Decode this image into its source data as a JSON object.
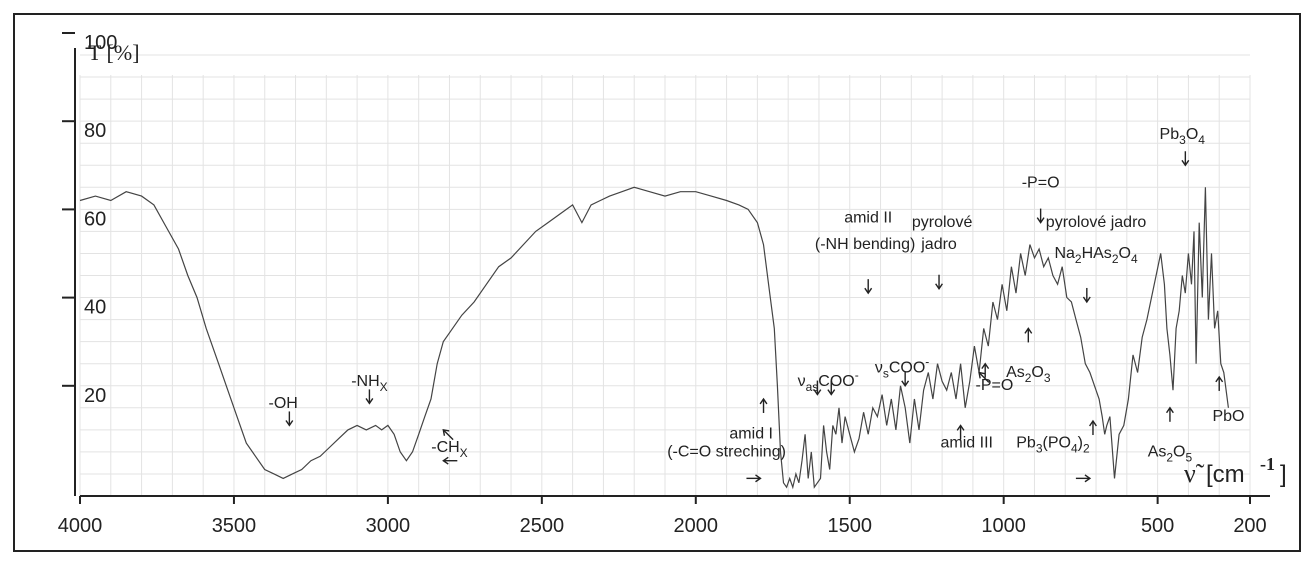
{
  "chart_data": {
    "type": "line",
    "title": "",
    "ylabel": "T [%]",
    "xlabel_symbol": "ν̃",
    "xlabel_unit": "[cm",
    "xlabel_exp": "-1",
    "xlabel_close": "]",
    "xlim": [
      4000,
      200
    ],
    "ylim": [
      0,
      100
    ],
    "grid": true,
    "x_ticks": [
      4000,
      3500,
      3000,
      2500,
      2000,
      1500,
      1000,
      500,
      200
    ],
    "y_ticks": [
      100,
      80,
      60,
      40,
      20
    ],
    "series": [
      {
        "x": [
          4000,
          3950,
          3900,
          3850,
          3800,
          3760,
          3720,
          3680,
          3650,
          3620,
          3590,
          3550,
          3520,
          3490,
          3460,
          3430,
          3400,
          3370,
          3340,
          3310,
          3280,
          3250,
          3220,
          3190,
          3160,
          3130,
          3100,
          3070,
          3040,
          3020,
          3000,
          2980,
          2960,
          2940,
          2920,
          2900,
          2880,
          2860,
          2840,
          2820,
          2800,
          2760,
          2720,
          2680,
          2640,
          2600,
          2560,
          2520,
          2480,
          2440,
          2400,
          2370,
          2340,
          2310,
          2280,
          2240,
          2200,
          2150,
          2100,
          2050,
          2000,
          1950,
          1900,
          1860,
          1830,
          1800,
          1780,
          1760,
          1745,
          1735,
          1725,
          1715,
          1705,
          1695,
          1685,
          1675,
          1665,
          1655,
          1645,
          1635,
          1625,
          1615,
          1605,
          1595,
          1585,
          1575,
          1565,
          1555,
          1545,
          1535,
          1525,
          1515,
          1500,
          1485,
          1470,
          1455,
          1440,
          1425,
          1410,
          1395,
          1380,
          1365,
          1350,
          1335,
          1320,
          1305,
          1290,
          1275,
          1260,
          1245,
          1230,
          1215,
          1200,
          1185,
          1170,
          1155,
          1140,
          1125,
          1110,
          1095,
          1080,
          1065,
          1050,
          1035,
          1020,
          1005,
          990,
          975,
          960,
          945,
          930,
          915,
          900,
          885,
          870,
          855,
          840,
          825,
          810,
          795,
          780,
          765,
          750,
          735,
          720,
          705,
          690,
          680,
          672,
          665,
          655,
          640,
          625,
          610,
          595,
          580,
          565,
          550,
          535,
          520,
          505,
          490,
          478,
          470,
          460,
          450,
          440,
          430,
          420,
          410,
          400,
          390,
          382,
          375,
          365,
          355,
          345,
          335,
          325,
          315,
          305,
          295,
          285,
          270
        ],
        "values": [
          67,
          68,
          67,
          69,
          68,
          66,
          61,
          56,
          50,
          45,
          38,
          30,
          24,
          18,
          12,
          9,
          6,
          5,
          4,
          5,
          6,
          8,
          9,
          11,
          13,
          15,
          16,
          15,
          16,
          15,
          16,
          14,
          10,
          8,
          10,
          14,
          18,
          22,
          30,
          35,
          37,
          41,
          44,
          48,
          52,
          54,
          57,
          60,
          62,
          64,
          66,
          62,
          66,
          67,
          68,
          69,
          70,
          69,
          68,
          69,
          69,
          68,
          67,
          66,
          65,
          62,
          57,
          46,
          38,
          25,
          10,
          3,
          2,
          4,
          2,
          5,
          3,
          8,
          14,
          4,
          10,
          2,
          3,
          4,
          16,
          10,
          6,
          16,
          14,
          20,
          12,
          18,
          14,
          10,
          13,
          19,
          14,
          20,
          18,
          23,
          16,
          22,
          15,
          25,
          20,
          12,
          22,
          15,
          24,
          28,
          22,
          30,
          26,
          24,
          28,
          22,
          30,
          20,
          26,
          34,
          28,
          38,
          34,
          44,
          40,
          48,
          42,
          52,
          46,
          55,
          50,
          57,
          54,
          56,
          52,
          54,
          50,
          48,
          52,
          45,
          44,
          40,
          36,
          30,
          28,
          25,
          22,
          18,
          14,
          16,
          18,
          4,
          14,
          16,
          22,
          32,
          28,
          36,
          40,
          45,
          50,
          55,
          48,
          38,
          32,
          24,
          38,
          42,
          50,
          46,
          55,
          48,
          60,
          30,
          62,
          45,
          70,
          40,
          55,
          38,
          42,
          30,
          28,
          20
        ]
      }
    ],
    "annotations": [
      {
        "text": "-OH",
        "x": 3340,
        "y": 20
      },
      {
        "text": "-NH",
        "sub": "X",
        "x": 3060,
        "y": 25
      },
      {
        "text": "-CH",
        "sub": "X",
        "x": 2800,
        "y": 10
      },
      {
        "text": "amid I",
        "x": 1820,
        "y": 13
      },
      {
        "text": "(-C=O streching)",
        "x": 1900,
        "y": 9
      },
      {
        "text": "ν",
        "sub": "as",
        "tail": "COO",
        "sup": "-",
        "x": 1570,
        "y": 25
      },
      {
        "text": "amid II",
        "x": 1440,
        "y": 62
      },
      {
        "text": "(-NH bending)",
        "x": 1450,
        "y": 56
      },
      {
        "text": "ν",
        "sub": "s",
        "tail": "COO",
        "sup": "-",
        "x": 1330,
        "y": 28
      },
      {
        "text": "pyrolové",
        "x": 1200,
        "y": 61
      },
      {
        "text": "jadro",
        "x": 1210,
        "y": 56
      },
      {
        "text": "amid III",
        "x": 1120,
        "y": 11
      },
      {
        "text": "-P=O",
        "x": 1030,
        "y": 24
      },
      {
        "text": "As",
        "sub": "2",
        "tail": "O",
        "sub2": "3",
        "x": 920,
        "y": 27
      },
      {
        "text": "-P=O",
        "x": 880,
        "y": 70
      },
      {
        "text": "pyrolové jadro",
        "x": 700,
        "y": 61
      },
      {
        "text": "Na",
        "sub": "2",
        "tail": "HAs",
        "sub2": "2",
        "tail2": "O",
        "sub3": "4",
        "x": 700,
        "y": 54
      },
      {
        "text": "Pb",
        "sub": "3",
        "tail": "(PO",
        "sub2": "4",
        "tail2": ")",
        "sub3": "2",
        "x": 840,
        "y": 11
      },
      {
        "text": "Pb",
        "sub": "3",
        "tail": "O",
        "sub2": "4",
        "x": 420,
        "y": 81
      },
      {
        "text": "As",
        "sub": "2",
        "tail": "O",
        "sub2": "5",
        "x": 460,
        "y": 9
      },
      {
        "text": "PbO",
        "x": 270,
        "y": 17
      }
    ]
  }
}
